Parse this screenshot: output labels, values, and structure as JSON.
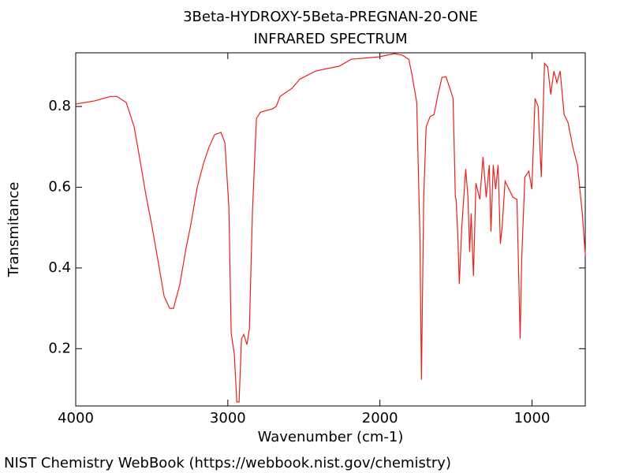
{
  "chart_data": {
    "type": "line",
    "title": "3Beta-HYDROXY-5Beta-PREGNAN-20-ONE",
    "subtitle": "INFRARED SPECTRUM",
    "x_label": "Wavenumber (cm-1)",
    "y_label": "Transmitance",
    "source": "NIST Chemistry WebBook (https://webbook.nist.gov/chemistry)",
    "color": "#e8221a",
    "xlim": [
      4000,
      650
    ],
    "ylim": [
      0.058,
      0.933
    ],
    "xticks": [
      4000,
      3000,
      2000,
      1000
    ],
    "yticks": [
      0.2,
      0.4,
      0.6,
      0.8
    ],
    "x": [
      4000,
      3875,
      3772,
      3730,
      3668,
      3616,
      3574,
      3538,
      3502,
      3460,
      3419,
      3382,
      3357,
      3315,
      3279,
      3242,
      3201,
      3159,
      3123,
      3087,
      3045,
      3019,
      2993,
      2978,
      2957,
      2941,
      2926,
      2910,
      2895,
      2874,
      2858,
      2838,
      2812,
      2786,
      2708,
      2682,
      2656,
      2578,
      2526,
      2422,
      2267,
      2189,
      2007,
      1904,
      1852,
      1810,
      1789,
      1758,
      1737,
      1727,
      1712,
      1696,
      1670,
      1644,
      1618,
      1592,
      1566,
      1540,
      1519,
      1504,
      1499,
      1488,
      1478,
      1462,
      1436,
      1421,
      1410,
      1400,
      1385,
      1369,
      1343,
      1322,
      1301,
      1281,
      1270,
      1255,
      1239,
      1223,
      1208,
      1197,
      1177,
      1151,
      1125,
      1099,
      1078,
      1068,
      1047,
      1021,
      1001,
      980,
      960,
      939,
      918,
      897,
      877,
      856,
      836,
      815,
      789,
      763,
      732,
      701,
      670,
      649
    ],
    "values": [
      0.806,
      0.814,
      0.825,
      0.825,
      0.81,
      0.75,
      0.66,
      0.58,
      0.51,
      0.42,
      0.33,
      0.3,
      0.3,
      0.36,
      0.44,
      0.51,
      0.6,
      0.66,
      0.7,
      0.73,
      0.736,
      0.71,
      0.55,
      0.24,
      0.185,
      0.068,
      0.068,
      0.225,
      0.235,
      0.21,
      0.25,
      0.54,
      0.77,
      0.786,
      0.794,
      0.8,
      0.825,
      0.845,
      0.868,
      0.888,
      0.9,
      0.917,
      0.923,
      0.931,
      0.927,
      0.917,
      0.878,
      0.81,
      0.48,
      0.123,
      0.575,
      0.75,
      0.775,
      0.78,
      0.83,
      0.872,
      0.874,
      0.845,
      0.82,
      0.575,
      0.57,
      0.48,
      0.36,
      0.5,
      0.645,
      0.575,
      0.44,
      0.535,
      0.38,
      0.61,
      0.57,
      0.675,
      0.575,
      0.655,
      0.49,
      0.655,
      0.595,
      0.655,
      0.46,
      0.5,
      0.615,
      0.595,
      0.575,
      0.57,
      0.225,
      0.42,
      0.625,
      0.64,
      0.595,
      0.82,
      0.8,
      0.625,
      0.907,
      0.898,
      0.83,
      0.888,
      0.859,
      0.888,
      0.78,
      0.76,
      0.7,
      0.654,
      0.537,
      0.43
    ]
  }
}
